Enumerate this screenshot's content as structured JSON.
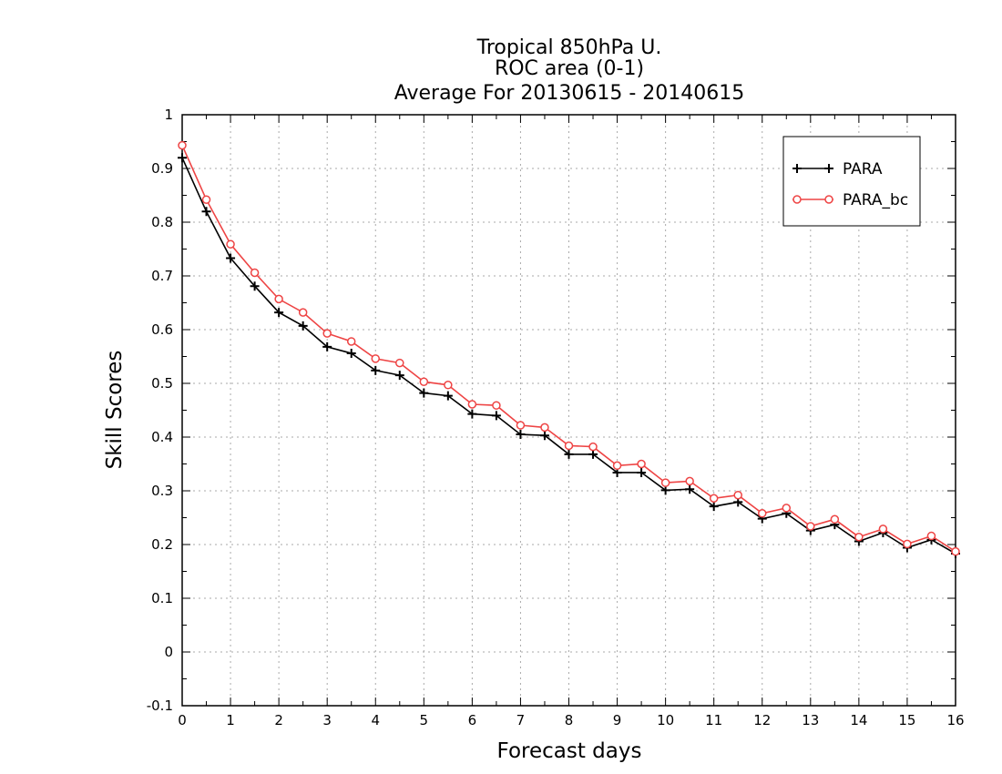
{
  "chart_data": {
    "type": "line",
    "title": [
      "Tropical 850hPa U.",
      "ROC area (0-1)",
      "Average For 20130615 - 20140615"
    ],
    "xlabel": "Forecast days",
    "ylabel": "Skill Scores",
    "xlim": [
      0,
      16
    ],
    "ylim": [
      -0.1,
      1
    ],
    "xticks": [
      "0",
      "1",
      "2",
      "3",
      "4",
      "5",
      "6",
      "7",
      "8",
      "9",
      "10",
      "11",
      "12",
      "13",
      "14",
      "15",
      "16"
    ],
    "yticks": [
      "-0.1",
      "0",
      "0.1",
      "0.2",
      "0.3",
      "0.4",
      "0.5",
      "0.6",
      "0.7",
      "0.8",
      "0.9",
      "1"
    ],
    "grid": true,
    "legend_position": "top-right",
    "x": [
      0,
      0.5,
      1,
      1.5,
      2,
      2.5,
      3,
      3.5,
      4,
      4.5,
      5,
      5.5,
      6,
      6.5,
      7,
      7.5,
      8,
      8.5,
      9,
      9.5,
      10,
      10.5,
      11,
      11.5,
      12,
      12.5,
      13,
      13.5,
      14,
      14.5,
      15,
      15.5,
      16
    ],
    "series": [
      {
        "name": "PARA",
        "color": "#000000",
        "marker": "plus",
        "values": [
          0.92,
          0.82,
          0.733,
          0.681,
          0.632,
          0.607,
          0.568,
          0.556,
          0.524,
          0.515,
          0.482,
          0.477,
          0.443,
          0.44,
          0.405,
          0.403,
          0.368,
          0.368,
          0.334,
          0.334,
          0.301,
          0.303,
          0.271,
          0.279,
          0.248,
          0.258,
          0.226,
          0.237,
          0.206,
          0.222,
          0.194,
          0.209,
          0.183
        ]
      },
      {
        "name": "PARA_bc",
        "color": "#ee4444",
        "marker": "circle",
        "values": [
          0.943,
          0.842,
          0.759,
          0.706,
          0.657,
          0.632,
          0.593,
          0.578,
          0.546,
          0.538,
          0.503,
          0.497,
          0.461,
          0.459,
          0.422,
          0.418,
          0.384,
          0.382,
          0.347,
          0.35,
          0.315,
          0.318,
          0.286,
          0.292,
          0.258,
          0.268,
          0.234,
          0.247,
          0.214,
          0.229,
          0.201,
          0.216,
          0.187
        ]
      }
    ]
  }
}
